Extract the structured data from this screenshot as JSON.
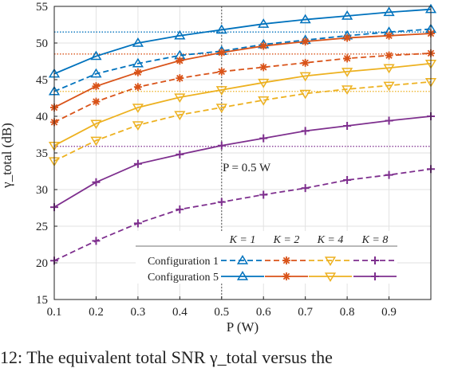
{
  "chart_data": {
    "type": "line",
    "xlabel": "P (W)",
    "ylabel": "γ_total (dB)",
    "x": [
      0.1,
      0.2,
      0.3,
      0.4,
      0.5,
      0.6,
      0.7,
      0.8,
      0.9,
      1.0
    ],
    "xticks": [
      0.1,
      0.2,
      0.3,
      0.4,
      0.5,
      0.6,
      0.7,
      0.8,
      0.9
    ],
    "xlim": [
      0.1,
      1.0
    ],
    "ylim": [
      15,
      55
    ],
    "yticks": [
      15,
      20,
      25,
      30,
      35,
      40,
      45,
      50,
      55
    ],
    "grid": true,
    "legend": {
      "placement": "bottom-right",
      "row_labels": [
        "Configuration 1",
        "Configuration 5"
      ],
      "column_labels": [
        "K = 1",
        "K = 2",
        "K = 4",
        "K = 8"
      ]
    },
    "annotation": {
      "text": "P  =  0.5 W",
      "x": 0.5
    },
    "colors": {
      "K1": "#0072BD",
      "K2": "#D95319",
      "K4": "#EDB120",
      "K8": "#7E2F8E"
    },
    "series": [
      {
        "config": "Configuration 1",
        "k": "K = 1",
        "color": "#0072BD",
        "marker": "triangle-up",
        "dashed": true,
        "values": [
          43.4,
          45.8,
          47.2,
          48.3,
          48.9,
          49.8,
          50.4,
          51.0,
          51.5,
          51.9
        ]
      },
      {
        "config": "Configuration 5",
        "k": "K = 1",
        "color": "#0072BD",
        "marker": "triangle-up",
        "dashed": false,
        "values": [
          45.8,
          48.2,
          50.0,
          51.0,
          51.8,
          52.6,
          53.2,
          53.7,
          54.2,
          54.6
        ]
      },
      {
        "config": "Configuration 1",
        "k": "K = 2",
        "color": "#D95319",
        "marker": "asterisk",
        "dashed": true,
        "values": [
          39.2,
          42.0,
          44.0,
          45.2,
          46.1,
          46.7,
          47.3,
          47.9,
          48.3,
          48.6
        ]
      },
      {
        "config": "Configuration 5",
        "k": "K = 2",
        "color": "#D95319",
        "marker": "asterisk",
        "dashed": false,
        "values": [
          41.2,
          44.1,
          46.0,
          47.6,
          48.7,
          49.6,
          50.2,
          50.7,
          51.0,
          51.3
        ]
      },
      {
        "config": "Configuration 1",
        "k": "K = 4",
        "color": "#EDB120",
        "marker": "triangle-down",
        "dashed": true,
        "values": [
          33.9,
          36.7,
          38.8,
          40.2,
          41.2,
          42.2,
          43.1,
          43.7,
          44.2,
          44.7
        ]
      },
      {
        "config": "Configuration 5",
        "k": "K = 4",
        "color": "#EDB120",
        "marker": "triangle-down",
        "dashed": false,
        "values": [
          36.0,
          39.0,
          41.2,
          42.6,
          43.6,
          44.6,
          45.5,
          46.1,
          46.6,
          47.2
        ]
      },
      {
        "config": "Configuration 1",
        "k": "K = 8",
        "color": "#7E2F8E",
        "marker": "plus",
        "dashed": true,
        "values": [
          20.3,
          23.0,
          25.4,
          27.3,
          28.3,
          29.3,
          30.2,
          31.3,
          32.0,
          32.8
        ]
      },
      {
        "config": "Configuration 5",
        "k": "K = 8",
        "color": "#7E2F8E",
        "marker": "plus",
        "dashed": false,
        "values": [
          27.6,
          31.0,
          33.5,
          34.8,
          36.0,
          37.0,
          38.0,
          38.7,
          39.4,
          40.0
        ]
      }
    ],
    "reference_lines": [
      {
        "y": 51.5,
        "color": "#0072BD"
      },
      {
        "y": 48.5,
        "color": "#D95319"
      },
      {
        "y": 43.4,
        "color": "#EDB120"
      },
      {
        "y": 35.9,
        "color": "#7E2F8E"
      }
    ]
  },
  "caption": {
    "text": "12: The equivalent total SNR γ_total versus the"
  }
}
